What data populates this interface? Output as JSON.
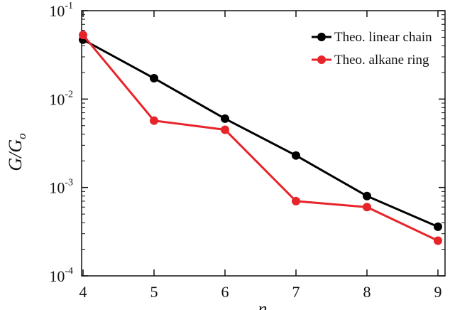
{
  "chart_data": {
    "type": "line",
    "xlabel": "n",
    "ylabel": "G/G",
    "ylabel_sub": "o",
    "x": [
      4,
      5,
      6,
      7,
      8,
      9
    ],
    "xlim": [
      3.98,
      9.1
    ],
    "ylim": [
      0.0001,
      0.1
    ],
    "yscale": "log",
    "x_ticks": [
      "4",
      "5",
      "6",
      "7",
      "8",
      "9"
    ],
    "y_ticks": [
      {
        "base": "10",
        "exp": "-1",
        "value": 0.1
      },
      {
        "base": "10",
        "exp": "-2",
        "value": 0.01
      },
      {
        "base": "10",
        "exp": "-3",
        "value": 0.001
      },
      {
        "base": "10",
        "exp": "-4",
        "value": 0.0001
      }
    ],
    "grid": false,
    "legend_position": "top-right",
    "series": [
      {
        "name": "Theo. linear chain",
        "color": "#000000",
        "values": [
          0.047,
          0.0172,
          0.006,
          0.0023,
          0.0008,
          0.00036
        ]
      },
      {
        "name": "Theo. alkane ring",
        "color": "#e8242b",
        "values": [
          0.053,
          0.0057,
          0.0045,
          0.0007,
          0.0006,
          0.00025
        ]
      }
    ]
  }
}
